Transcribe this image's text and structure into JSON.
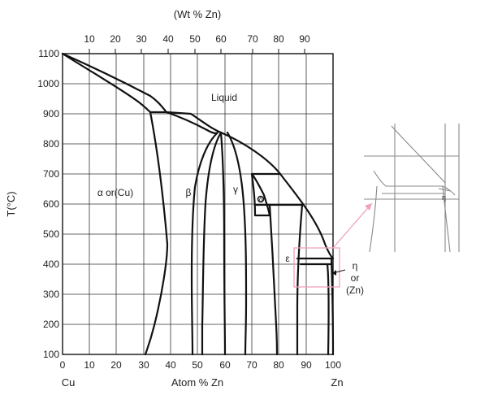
{
  "top_axis": {
    "title": "(Wt  % Zn)",
    "ticks": [
      "10",
      "20",
      "30",
      "40",
      "50",
      "60",
      "70",
      "80",
      "90"
    ]
  },
  "bottom_axis": {
    "title": "Atom  % Zn",
    "ticks": [
      "0",
      "10",
      "20",
      "30",
      "40",
      "50",
      "60",
      "70",
      "80",
      "90",
      "100"
    ],
    "left_end": "Cu",
    "right_end": "Zn"
  },
  "left_axis": {
    "title": "T(°C)",
    "ticks": [
      "1100",
      "1000",
      "900",
      "800",
      "700",
      "600",
      "500",
      "400",
      "300",
      "200",
      "100"
    ]
  },
  "phases": {
    "liquid": "Liquid",
    "alpha": "α or(Cu)",
    "beta": "β",
    "gamma": "γ",
    "delta": "δ",
    "epsilon": "ε",
    "eta_1": "η",
    "eta_2": "or",
    "eta_3": "(Zn)"
  },
  "inset": {
    "label": "η"
  },
  "colors": {
    "ink": "#111111",
    "grid": "#333333",
    "highlight": "#f0a0c0",
    "inset_line": "#888888"
  }
}
